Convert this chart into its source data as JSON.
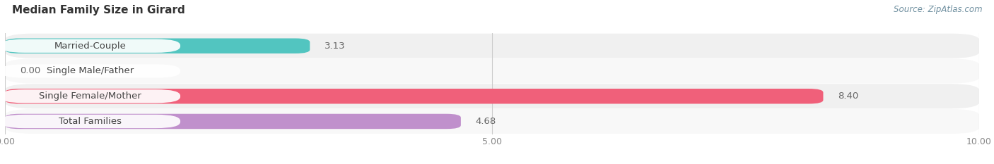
{
  "title": "Median Family Size in Girard",
  "source": "Source: ZipAtlas.com",
  "categories": [
    "Married-Couple",
    "Single Male/Father",
    "Single Female/Mother",
    "Total Families"
  ],
  "values": [
    3.13,
    0.0,
    8.4,
    4.68
  ],
  "bar_colors": [
    "#52C5C0",
    "#AAB8E8",
    "#F0607A",
    "#C090CC"
  ],
  "row_bg_colors": [
    "#F0F0F0",
    "#F8F8F8",
    "#F0F0F0",
    "#F8F8F8"
  ],
  "xlim": [
    0,
    10
  ],
  "xticks": [
    0.0,
    5.0,
    10.0
  ],
  "xtick_labels": [
    "0.00",
    "5.00",
    "10.00"
  ],
  "bar_height": 0.6,
  "label_fontsize": 9.5,
  "value_fontsize": 9.5,
  "title_fontsize": 11,
  "source_fontsize": 8.5
}
